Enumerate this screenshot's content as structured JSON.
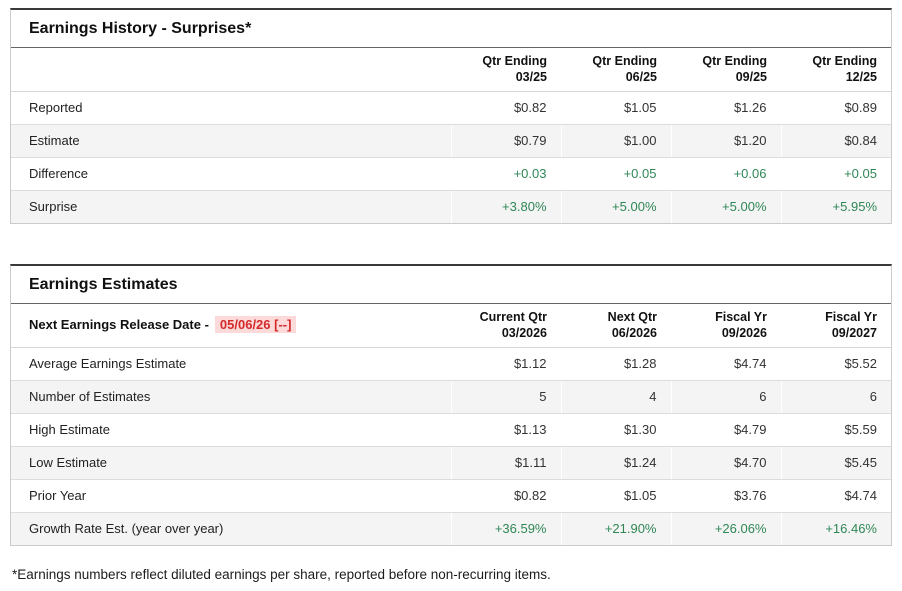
{
  "colors": {
    "positive_green": "#2f8756",
    "alert_red": "#d42a2a",
    "alert_red_background": "#fcdada"
  },
  "history": {
    "title": "Earnings History - Surprises*",
    "columns": [
      {
        "line1": "Qtr Ending",
        "line2": "03/25"
      },
      {
        "line1": "Qtr Ending",
        "line2": "06/25"
      },
      {
        "line1": "Qtr Ending",
        "line2": "09/25"
      },
      {
        "line1": "Qtr Ending",
        "line2": "12/25"
      }
    ],
    "rows": [
      {
        "label": "Reported",
        "values": [
          "$0.82",
          "$1.05",
          "$1.26",
          "$0.89"
        ],
        "value_style": "normal"
      },
      {
        "label": "Estimate",
        "values": [
          "$0.79",
          "$1.00",
          "$1.20",
          "$0.84"
        ],
        "value_style": "normal"
      },
      {
        "label": "Difference",
        "values": [
          "+0.03",
          "+0.05",
          "+0.06",
          "+0.05"
        ],
        "value_style": "green"
      },
      {
        "label": "Surprise",
        "values": [
          "+3.80%",
          "+5.00%",
          "+5.00%",
          "+5.95%"
        ],
        "value_style": "green"
      }
    ]
  },
  "estimates": {
    "title": "Earnings Estimates",
    "release_label": "Next Earnings Release Date -",
    "release_date": "05/06/26 [--]",
    "columns": [
      {
        "line1": "Current Qtr",
        "line2": "03/2026"
      },
      {
        "line1": "Next Qtr",
        "line2": "06/2026"
      },
      {
        "line1": "Fiscal Yr",
        "line2": "09/2026"
      },
      {
        "line1": "Fiscal Yr",
        "line2": "09/2027"
      }
    ],
    "rows": [
      {
        "label": "Average Earnings Estimate",
        "values": [
          "$1.12",
          "$1.28",
          "$4.74",
          "$5.52"
        ],
        "value_style": "normal"
      },
      {
        "label": "Number of Estimates",
        "values": [
          "5",
          "4",
          "6",
          "6"
        ],
        "value_style": "normal"
      },
      {
        "label": "High Estimate",
        "values": [
          "$1.13",
          "$1.30",
          "$4.79",
          "$5.59"
        ],
        "value_style": "normal"
      },
      {
        "label": "Low Estimate",
        "values": [
          "$1.11",
          "$1.24",
          "$4.70",
          "$5.45"
        ],
        "value_style": "normal"
      },
      {
        "label": "Prior Year",
        "values": [
          "$0.82",
          "$1.05",
          "$3.76",
          "$4.74"
        ],
        "value_style": "normal"
      },
      {
        "label": "Growth Rate Est. (year over year)",
        "values": [
          "+36.59%",
          "+21.90%",
          "+26.06%",
          "+16.46%"
        ],
        "value_style": "green"
      }
    ]
  },
  "footnote": "*Earnings numbers reflect diluted earnings per share, reported before non-recurring items."
}
